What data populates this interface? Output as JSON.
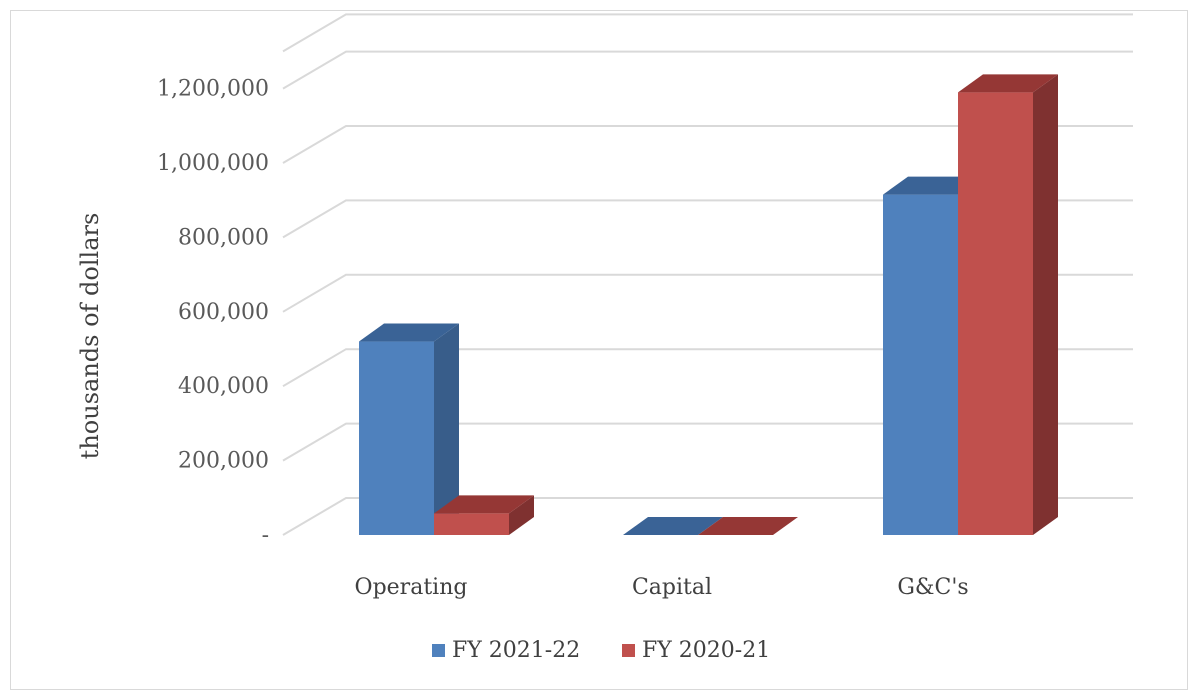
{
  "chart_data": {
    "type": "bar",
    "style": "3d-clustered-column",
    "categories": [
      "Operating",
      "Capital",
      "G&C's"
    ],
    "series": [
      {
        "name": "FY 2021-22",
        "values": [
          520000,
          0,
          915000
        ],
        "color": "#4f81bd",
        "top_color": "#3a6396",
        "side_color": "#385d8a"
      },
      {
        "name": "FY 2020-21",
        "values": [
          58000,
          0,
          1190000
        ],
        "color": "#c0504d",
        "top_color": "#953735",
        "side_color": "#7f3130"
      }
    ],
    "ylabel": "thousands of dollars",
    "ylim": [
      0,
      1300000
    ],
    "y_ticks": [
      {
        "value": 0,
        "label": "-"
      },
      {
        "value": 200000,
        "label": "200,000"
      },
      {
        "value": 400000,
        "label": "400,000"
      },
      {
        "value": 600000,
        "label": "600,000"
      },
      {
        "value": 800000,
        "label": "800,000"
      },
      {
        "value": 1000000,
        "label": "1,000,000"
      },
      {
        "value": 1200000,
        "label": "1,200,000"
      }
    ],
    "gridlines": true,
    "legend_position": "bottom"
  }
}
